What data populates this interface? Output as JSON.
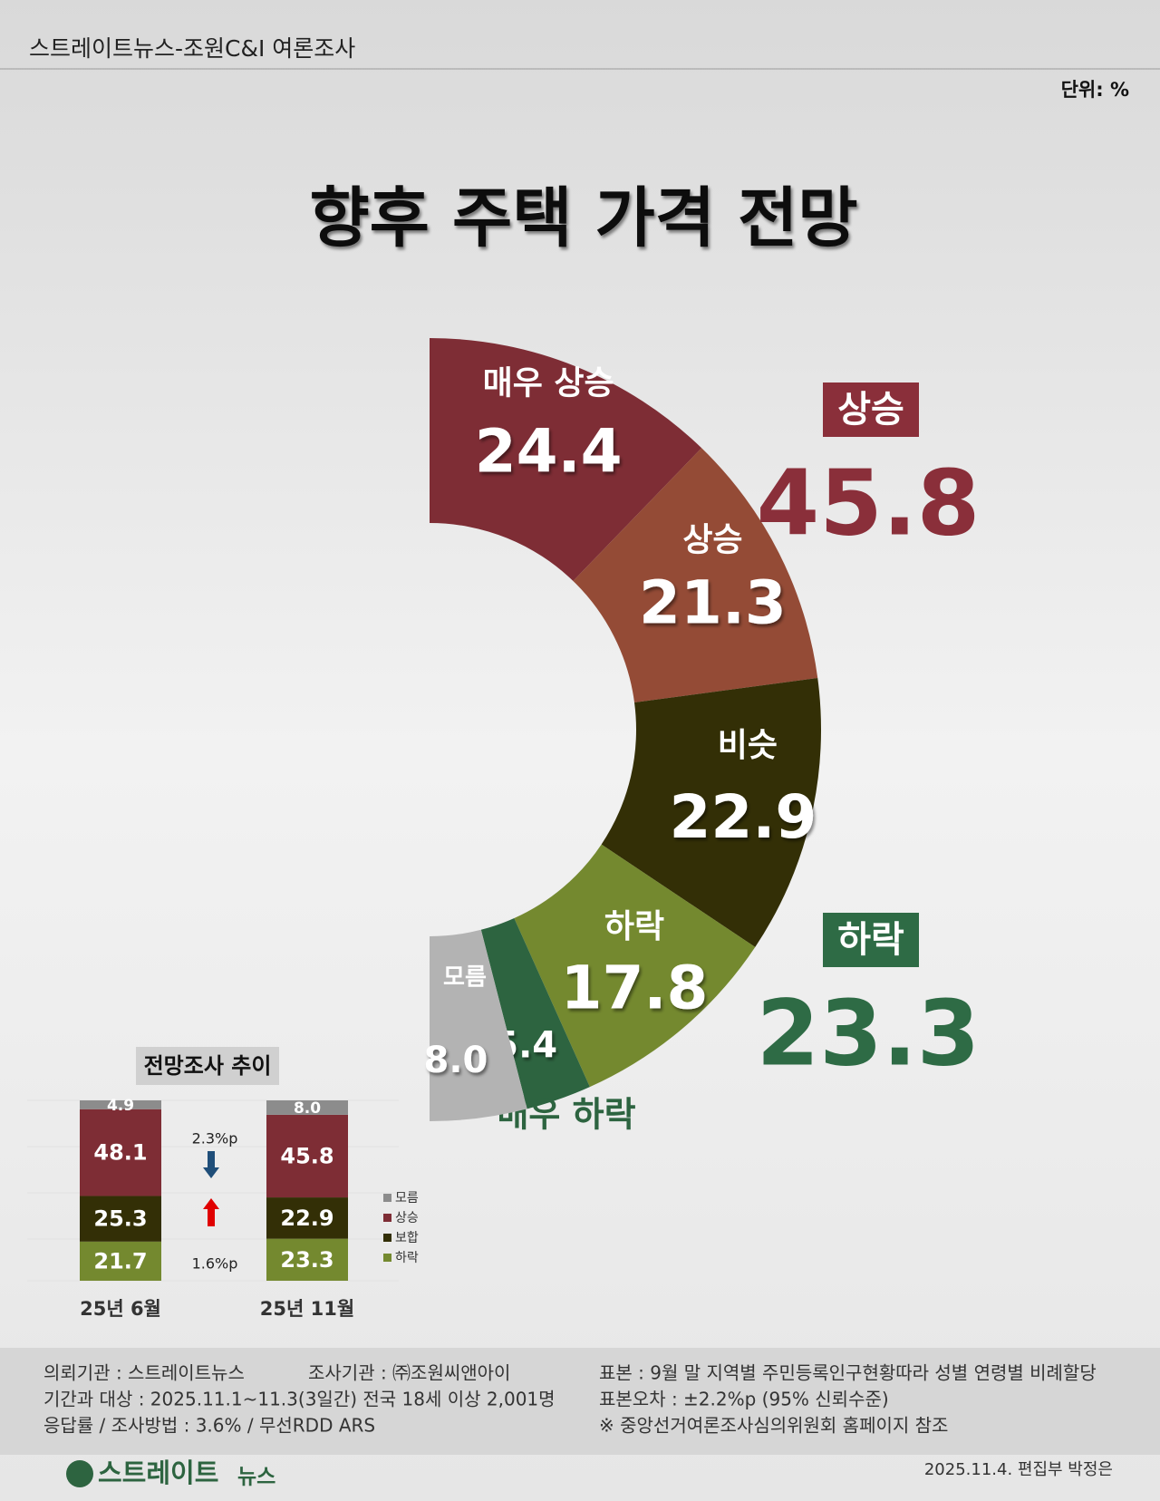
{
  "header": {
    "source": "스트레이트뉴스-조원C&I 여론조사",
    "unit": "단위: %"
  },
  "chart_data": [
    {
      "type": "pie",
      "title": "향후  주택 가격 전망",
      "categories": [
        "매우 상승",
        "상승",
        "비슷",
        "하락",
        "매우 하락",
        "모름"
      ],
      "values": [
        24.4,
        21.3,
        22.9,
        17.8,
        5.4,
        8.0
      ],
      "value_labels": [
        "24.4",
        "21.3",
        "22.9",
        "17.8",
        "5.4",
        "8.0"
      ],
      "colors": [
        "#7e2d35",
        "#944b36",
        "#332f06",
        "#74892f",
        "#2d6440",
        "#b3b3b3"
      ],
      "groups": [
        {
          "name": "상승",
          "value": 45.8,
          "color": "#8a2f3a"
        },
        {
          "name": "하락",
          "value": 23.3,
          "color": "#2e6b45"
        }
      ]
    },
    {
      "type": "stacked-bar",
      "title": "전망조사 추이",
      "categories": [
        "25년 6월",
        "25년 11월"
      ],
      "series": [
        {
          "name": "하락",
          "color": "#74892f",
          "values": [
            21.7,
            23.3
          ]
        },
        {
          "name": "보합",
          "color": "#332f06",
          "values": [
            25.3,
            22.9
          ]
        },
        {
          "name": "상승",
          "color": "#7e2d35",
          "values": [
            48.1,
            45.8
          ]
        },
        {
          "name": "모름",
          "color": "#8c8c8c",
          "values": [
            4.9,
            8.0
          ],
          "value_labels": [
            "4.9",
            "8.0"
          ]
        }
      ],
      "annotations": [
        {
          "text": "2.3%p",
          "direction": "down",
          "color": "#1f4e79"
        },
        {
          "text": "1.6%p",
          "direction": "up",
          "color": "#e00000"
        }
      ]
    }
  ],
  "footer": {
    "left": [
      [
        "의뢰기관 : 스트레이트뉴스",
        "조사기관 : ㈜조원씨앤아이"
      ],
      [
        "기간과 대상 : 2025.11.1~11.3(3일간)   전국 18세 이상  2,001명"
      ],
      [
        "응답률 / 조사방법 : 3.6% / 무선RDD ARS"
      ]
    ],
    "right": [
      "표본 : 9월 말 지역별 주민등록인구현황따라 성별 연령별 비례할당",
      "표본오차 : ±2.2%p (95% 신뢰수준)",
      "※ 중앙선거여론조사심의위원회 홈페이지 참조"
    ],
    "logo": [
      "스트레이트",
      "뉴스"
    ],
    "credit": "2025.11.4. 편집부 박정은"
  }
}
